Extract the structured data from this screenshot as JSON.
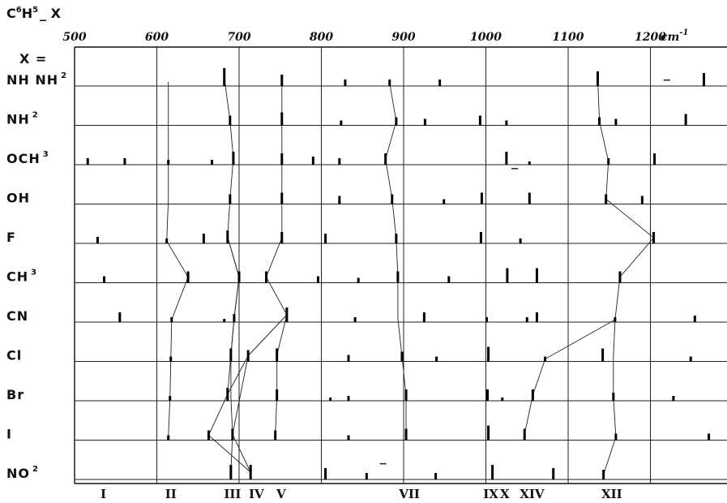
{
  "chart_data": {
    "type": "scatter",
    "title": "C6H5 X",
    "title_parts": {
      "a": "C",
      "b": "6",
      "c": "H",
      "d": "5",
      "e": "X"
    },
    "row_header": "X =",
    "x_unit": "cm",
    "x_unit_exp": "-1",
    "xlim": [
      500,
      1265
    ],
    "x_ticks": [
      500,
      600,
      700,
      800,
      900,
      1000,
      1100,
      1200
    ],
    "x_tick_labels": [
      "500",
      "600",
      "700",
      "800",
      "900",
      "1000",
      "1100",
      "1200"
    ],
    "grid": true,
    "rows": [
      {
        "label": "NH NH",
        "sup": "2",
        "lines": [
          [
            682,
            22
          ],
          [
            752,
            14
          ],
          [
            829,
            8
          ],
          [
            883,
            8
          ],
          [
            944,
            8
          ],
          [
            1136,
            18
          ],
          [
            1265,
            16
          ]
        ]
      },
      {
        "label": "NH",
        "sup": "2",
        "lines": [
          [
            689,
            12
          ],
          [
            752,
            16
          ],
          [
            824,
            6
          ],
          [
            891,
            10
          ],
          [
            926,
            8
          ],
          [
            993,
            12
          ],
          [
            1025,
            6
          ],
          [
            1138,
            10
          ],
          [
            1158,
            8
          ],
          [
            1243,
            14
          ]
        ]
      },
      {
        "label": "OCH",
        "sup": "3",
        "lines": [
          [
            516,
            8
          ],
          [
            561,
            8
          ],
          [
            614,
            6
          ],
          [
            667,
            6
          ],
          [
            693,
            16
          ],
          [
            752,
            14
          ],
          [
            790,
            10
          ],
          [
            822,
            8
          ],
          [
            878,
            14
          ],
          [
            1025,
            16
          ],
          [
            1053,
            4
          ],
          [
            1149,
            8
          ],
          [
            1205,
            14
          ]
        ]
      },
      {
        "label": "OH",
        "sup": "",
        "lines": [
          [
            689,
            12
          ],
          [
            752,
            14
          ],
          [
            822,
            10
          ],
          [
            886,
            12
          ],
          [
            949,
            6
          ],
          [
            995,
            14
          ],
          [
            1053,
            14
          ],
          [
            1146,
            12
          ],
          [
            1190,
            10
          ]
        ]
      },
      {
        "label": "F",
        "sup": "",
        "lines": [
          [
            528,
            8
          ],
          [
            612,
            6
          ],
          [
            657,
            12
          ],
          [
            686,
            16
          ],
          [
            752,
            14
          ],
          [
            805,
            12
          ],
          [
            891,
            12
          ],
          [
            994,
            14
          ],
          [
            1042,
            6
          ],
          [
            1204,
            14
          ]
        ]
      },
      {
        "label": "CH",
        "sup": "3",
        "lines": [
          [
            536,
            8
          ],
          [
            638,
            14
          ],
          [
            700,
            14
          ],
          [
            733,
            14
          ],
          [
            796,
            8
          ],
          [
            845,
            6
          ],
          [
            893,
            14
          ],
          [
            955,
            8
          ],
          [
            1026,
            18
          ],
          [
            1062,
            18
          ],
          [
            1163,
            14
          ]
        ]
      },
      {
        "label": "CN",
        "sup": "",
        "lines": [
          [
            555,
            12
          ],
          [
            618,
            6
          ],
          [
            682,
            4
          ],
          [
            694,
            10
          ],
          [
            758,
            18
          ],
          [
            841,
            6
          ],
          [
            925,
            12
          ],
          [
            1001,
            6
          ],
          [
            1050,
            6
          ],
          [
            1062,
            12
          ],
          [
            1157,
            6
          ],
          [
            1254,
            8
          ]
        ]
      },
      {
        "label": "Cl",
        "sup": "",
        "lines": [
          [
            617,
            6
          ],
          [
            690,
            16
          ],
          [
            711,
            14
          ],
          [
            746,
            16
          ],
          [
            833,
            8
          ],
          [
            898,
            12
          ],
          [
            940,
            6
          ],
          [
            1003,
            18
          ],
          [
            1072,
            6
          ],
          [
            1142,
            16
          ],
          [
            1249,
            6
          ]
        ]
      },
      {
        "label": "Br",
        "sup": "",
        "lines": [
          [
            616,
            6
          ],
          [
            686,
            16
          ],
          [
            746,
            14
          ],
          [
            811,
            4
          ],
          [
            833,
            6
          ],
          [
            903,
            14
          ],
          [
            1002,
            14
          ],
          [
            1020,
            4
          ],
          [
            1057,
            14
          ],
          [
            1155,
            10
          ],
          [
            1228,
            6
          ]
        ]
      },
      {
        "label": "I",
        "sup": "",
        "lines": [
          [
            614,
            6
          ],
          [
            663,
            12
          ],
          [
            692,
            14
          ],
          [
            744,
            12
          ],
          [
            833,
            6
          ],
          [
            903,
            14
          ],
          [
            1003,
            18
          ],
          [
            1047,
            14
          ],
          [
            1158,
            8
          ],
          [
            1271,
            8
          ]
        ]
      },
      {
        "label": "NO",
        "sup": "2",
        "lines": [
          [
            690,
            18
          ],
          [
            714,
            18
          ],
          [
            805,
            14
          ],
          [
            855,
            8
          ],
          [
            939,
            8
          ],
          [
            1008,
            18
          ],
          [
            1082,
            14
          ],
          [
            1143,
            12
          ]
        ]
      }
    ],
    "connector_lines": [
      {
        "points": [
          [
            0,
            614
          ],
          [
            1,
            614
          ],
          [
            2,
            614
          ],
          [
            3,
            614
          ],
          [
            4,
            612
          ],
          [
            5,
            638
          ],
          [
            6,
            618
          ],
          [
            7,
            617
          ],
          [
            8,
            616
          ],
          [
            9,
            614
          ]
        ]
      },
      {
        "points": [
          [
            0,
            682
          ],
          [
            1,
            689
          ],
          [
            2,
            693
          ],
          [
            3,
            689
          ],
          [
            4,
            686
          ],
          [
            5,
            700
          ],
          [
            6,
            694
          ],
          [
            7,
            690
          ],
          [
            8,
            686
          ],
          [
            9,
            663
          ],
          [
            10,
            714
          ]
        ]
      },
      {
        "points": [
          [
            4,
            686
          ],
          [
            5,
            700
          ],
          [
            6,
            694
          ],
          [
            7,
            690
          ],
          [
            8,
            690
          ],
          [
            9,
            692
          ],
          [
            10,
            690
          ]
        ]
      },
      {
        "points": [
          [
            0,
            752
          ],
          [
            1,
            752
          ],
          [
            2,
            752
          ],
          [
            3,
            752
          ],
          [
            4,
            752
          ],
          [
            5,
            733
          ],
          [
            6,
            758
          ],
          [
            7,
            711
          ],
          [
            8,
            686
          ]
        ]
      },
      {
        "points": [
          [
            6,
            758
          ],
          [
            7,
            746
          ],
          [
            8,
            746
          ],
          [
            9,
            744
          ]
        ]
      },
      {
        "points": [
          [
            6,
            758
          ],
          [
            7,
            711
          ],
          [
            9,
            692
          ],
          [
            10,
            714
          ]
        ]
      },
      {
        "points": [
          [
            0,
            883
          ],
          [
            1,
            891
          ],
          [
            2,
            878
          ],
          [
            3,
            886
          ],
          [
            4,
            891
          ],
          [
            5,
            893
          ],
          [
            6,
            893
          ],
          [
            7,
            898
          ],
          [
            8,
            903
          ],
          [
            9,
            903
          ]
        ]
      },
      {
        "points": [
          [
            0,
            1136
          ],
          [
            1,
            1138
          ],
          [
            2,
            1149
          ],
          [
            3,
            1146
          ],
          [
            4,
            1204
          ],
          [
            5,
            1163
          ],
          [
            6,
            1157
          ],
          [
            7,
            1072
          ],
          [
            8,
            1057
          ],
          [
            9,
            1047
          ]
        ]
      },
      {
        "points": [
          [
            6,
            1157
          ],
          [
            7,
            1155
          ],
          [
            8,
            1155
          ],
          [
            9,
            1158
          ],
          [
            10,
            1143
          ]
        ]
      }
    ],
    "band_labels": [
      {
        "label": "I",
        "x": 535
      },
      {
        "label": "II",
        "x": 617
      },
      {
        "label": "III",
        "x": 692
      },
      {
        "label": "IV",
        "x": 721
      },
      {
        "label": "V",
        "x": 751
      },
      {
        "label": "VII",
        "x": 907
      },
      {
        "label": "IX",
        "x": 1006
      },
      {
        "label": "X",
        "x": 1023
      },
      {
        "label": "XIV",
        "x": 1056
      },
      {
        "label": "XII",
        "x": 1153
      }
    ],
    "stray_marks": [
      {
        "x": 1035,
        "row": 2.1
      },
      {
        "x": 1220,
        "row": -0.15
      },
      {
        "x": 875,
        "row": 9.6
      }
    ]
  }
}
